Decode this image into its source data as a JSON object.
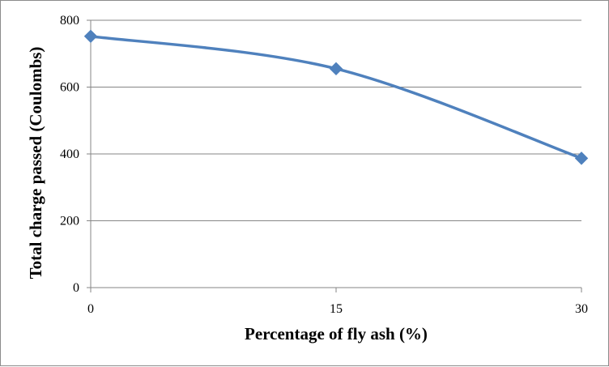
{
  "chart_data": {
    "type": "line",
    "title": "",
    "xlabel": "Percentage of fly ash (%)",
    "ylabel": "Total charge passed (Coulombs)",
    "x": [
      0,
      15,
      30
    ],
    "x_tick_labels": [
      "0",
      "15",
      "30"
    ],
    "y_tick_labels": [
      "0",
      "200",
      "400",
      "600",
      "800"
    ],
    "ylim": [
      0,
      800
    ],
    "xlim": [
      0,
      30
    ],
    "grid": "horizontal",
    "series": [
      {
        "values": [
          752,
          655,
          387
        ],
        "color": "#4f81bd",
        "marker": "diamond",
        "smooth": true
      }
    ]
  }
}
